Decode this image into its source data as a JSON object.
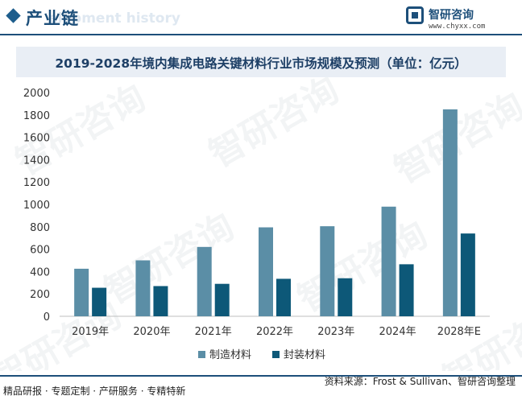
{
  "header": {
    "title": "产业链",
    "watermark_text": "elopment history",
    "logo_name": "智研咨询",
    "logo_url": "www.chyxx.com"
  },
  "watermark": {
    "text": "智研咨询"
  },
  "chart_data": {
    "type": "bar",
    "title": "2019-2028年境内集成电路关键材料行业市场规模及预测（单位：亿元）",
    "categories": [
      "2019年",
      "2020年",
      "2021年",
      "2022年",
      "2023年",
      "2024年",
      "2028年E"
    ],
    "series": [
      {
        "name": "制造材料",
        "color": "#5b8ea6",
        "values": [
          425,
          500,
          620,
          795,
          805,
          980,
          1850
        ]
      },
      {
        "name": "封装材料",
        "color": "#0d5878",
        "values": [
          255,
          270,
          290,
          335,
          340,
          465,
          740
        ]
      }
    ],
    "ylim": [
      0,
      2000
    ],
    "yticks": [
      0,
      200,
      400,
      600,
      800,
      1000,
      1200,
      1400,
      1600,
      1800,
      2000
    ],
    "grid": false,
    "legend": "bottom-center"
  },
  "footer": {
    "left": "精品研报 · 专题定制 · 产研服务 · 专精特新",
    "source": "资料来源：Frost & Sullivan、智研咨询整理"
  }
}
